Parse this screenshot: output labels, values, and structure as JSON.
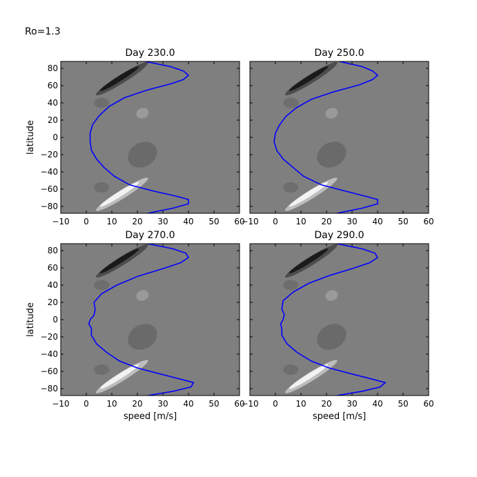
{
  "figure_label": "Ro=1.3",
  "chart_data": [
    {
      "type": "line",
      "title": "Day 230.0",
      "xlabel": "",
      "ylabel": "latitude",
      "xlim": [
        -10,
        60
      ],
      "ylim": [
        -88,
        88
      ],
      "xticks": [
        "−10",
        "0",
        "10",
        "20",
        "30",
        "40",
        "50",
        "60"
      ],
      "yticks": [
        "80",
        "60",
        "40",
        "20",
        "0",
        "−20",
        "−40",
        "−60",
        "−80"
      ],
      "background": "filled contours (grayscale)",
      "series": [
        {
          "color": "#0000ff",
          "points": [
            [
              23,
              88
            ],
            [
              33,
              82
            ],
            [
              38,
              77
            ],
            [
              40,
              72
            ],
            [
              38,
              67
            ],
            [
              33,
              62
            ],
            [
              24,
              55
            ],
            [
              15,
              46
            ],
            [
              9,
              36
            ],
            [
              5,
              25
            ],
            [
              2.5,
              15
            ],
            [
              1.5,
              5
            ],
            [
              1.5,
              -5
            ],
            [
              2,
              -15
            ],
            [
              4,
              -25
            ],
            [
              7,
              -35
            ],
            [
              11,
              -45
            ],
            [
              17,
              -55
            ],
            [
              26,
              -62
            ],
            [
              35,
              -68
            ],
            [
              40,
              -72
            ],
            [
              40,
              -77
            ],
            [
              34,
              -82
            ],
            [
              24,
              -88
            ]
          ]
        }
      ]
    },
    {
      "type": "line",
      "title": "Day 250.0",
      "xlabel": "",
      "ylabel": "",
      "xlim": [
        -10,
        60
      ],
      "ylim": [
        -88,
        88
      ],
      "xticks": [
        "−10",
        "0",
        "10",
        "20",
        "30",
        "40",
        "50",
        "60"
      ],
      "yticks": [],
      "background": "filled contours (grayscale)",
      "series": [
        {
          "color": "#0000ff",
          "points": [
            [
              25,
              88
            ],
            [
              34,
              82
            ],
            [
              38,
              77
            ],
            [
              40,
              72
            ],
            [
              38,
              67
            ],
            [
              33,
              61
            ],
            [
              23,
              53
            ],
            [
              14,
              44
            ],
            [
              8,
              34
            ],
            [
              4,
              24
            ],
            [
              1.5,
              14
            ],
            [
              0,
              5
            ],
            [
              -0.5,
              -5
            ],
            [
              0.5,
              -15
            ],
            [
              3,
              -25
            ],
            [
              7,
              -35
            ],
            [
              11,
              -45
            ],
            [
              18,
              -55
            ],
            [
              27,
              -62
            ],
            [
              35,
              -68
            ],
            [
              40,
              -72
            ],
            [
              40,
              -77
            ],
            [
              34,
              -82
            ],
            [
              24,
              -88
            ]
          ]
        }
      ]
    },
    {
      "type": "line",
      "title": "Day 270.0",
      "xlabel": "speed [m/s]",
      "ylabel": "latitude",
      "xlim": [
        -10,
        60
      ],
      "ylim": [
        -88,
        88
      ],
      "xticks": [
        "−10",
        "0",
        "10",
        "20",
        "30",
        "40",
        "50",
        "60"
      ],
      "yticks": [
        "80",
        "60",
        "40",
        "20",
        "0",
        "−20",
        "−40",
        "−60",
        "−80"
      ],
      "background": "filled contours (grayscale)",
      "series": [
        {
          "color": "#0000ff",
          "points": [
            [
              24,
              88
            ],
            [
              34,
              82
            ],
            [
              39,
              77
            ],
            [
              40,
              72
            ],
            [
              37,
              66
            ],
            [
              31,
              60
            ],
            [
              20,
              50
            ],
            [
              12,
              40
            ],
            [
              6,
              30
            ],
            [
              3,
              20
            ],
            [
              3.5,
              12
            ],
            [
              3,
              5
            ],
            [
              1.5,
              0
            ],
            [
              1,
              -5
            ],
            [
              2,
              -10
            ],
            [
              2,
              -18
            ],
            [
              4,
              -28
            ],
            [
              8,
              -38
            ],
            [
              13,
              -48
            ],
            [
              20,
              -56
            ],
            [
              29,
              -63
            ],
            [
              37,
              -69
            ],
            [
              42,
              -73
            ],
            [
              41,
              -78
            ],
            [
              34,
              -83
            ],
            [
              24,
              -88
            ]
          ]
        }
      ]
    },
    {
      "type": "line",
      "title": "Day 290.0",
      "xlabel": "speed [m/s]",
      "ylabel": "",
      "xlim": [
        -10,
        60
      ],
      "ylim": [
        -88,
        88
      ],
      "xticks": [
        "−10",
        "0",
        "10",
        "20",
        "30",
        "40",
        "50",
        "60"
      ],
      "yticks": [],
      "background": "filled contours (grayscale)",
      "series": [
        {
          "color": "#0000ff",
          "points": [
            [
              24,
              88
            ],
            [
              34,
              82
            ],
            [
              39,
              77
            ],
            [
              40,
              72
            ],
            [
              37,
              66
            ],
            [
              31,
              60
            ],
            [
              21,
              51
            ],
            [
              13,
              42
            ],
            [
              7,
              32
            ],
            [
              3,
              22
            ],
            [
              2.5,
              12
            ],
            [
              3.5,
              6
            ],
            [
              3,
              0
            ],
            [
              2,
              -5
            ],
            [
              2.5,
              -10
            ],
            [
              2.5,
              -18
            ],
            [
              4.5,
              -28
            ],
            [
              8.5,
              -38
            ],
            [
              14,
              -48
            ],
            [
              21,
              -56
            ],
            [
              30,
              -63
            ],
            [
              38,
              -69
            ],
            [
              43,
              -73
            ],
            [
              41,
              -78
            ],
            [
              34,
              -83
            ],
            [
              24,
              -88
            ]
          ]
        }
      ]
    }
  ]
}
